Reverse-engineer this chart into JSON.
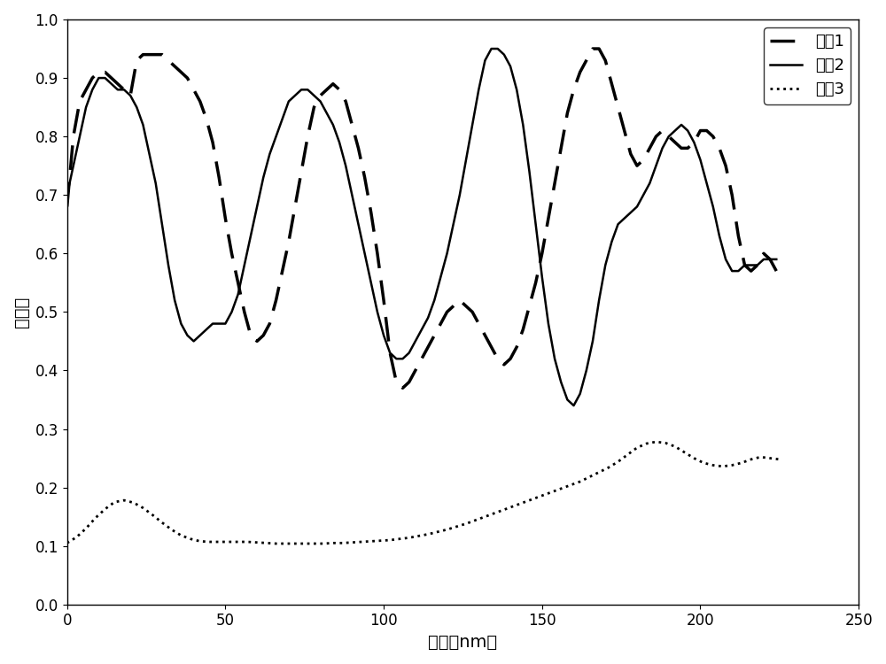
{
  "xlim": [
    0,
    250
  ],
  "ylim": [
    0,
    1.0
  ],
  "xticks": [
    0,
    50,
    100,
    150,
    200,
    250
  ],
  "yticks": [
    0,
    0.1,
    0.2,
    0.3,
    0.4,
    0.5,
    0.6,
    0.7,
    0.8,
    0.9,
    1.0
  ],
  "xlabel": "波长（nm）",
  "ylabel": "反射率",
  "legend": [
    "地牸1",
    "地牸2",
    "地牸3"
  ],
  "line_color": "#000000",
  "background_color": "#ffffff",
  "font_size": 14,
  "curve1_x": [
    0,
    2,
    4,
    6,
    8,
    10,
    12,
    14,
    16,
    18,
    20,
    22,
    24,
    26,
    28,
    30,
    32,
    34,
    36,
    38,
    40,
    42,
    44,
    46,
    48,
    50,
    52,
    54,
    56,
    58,
    60,
    62,
    64,
    66,
    68,
    70,
    72,
    74,
    76,
    78,
    80,
    82,
    84,
    86,
    88,
    90,
    92,
    94,
    96,
    98,
    100,
    102,
    104,
    106,
    108,
    110,
    112,
    114,
    116,
    118,
    120,
    122,
    124,
    126,
    128,
    130,
    132,
    134,
    136,
    138,
    140,
    142,
    144,
    146,
    148,
    150,
    152,
    154,
    156,
    158,
    160,
    162,
    164,
    166,
    168,
    170,
    172,
    174,
    176,
    178,
    180,
    182,
    184,
    186,
    188,
    190,
    192,
    194,
    196,
    198,
    200,
    202,
    204,
    206,
    208,
    210,
    212,
    214,
    216,
    218,
    220,
    222,
    224
  ],
  "curve1_y": [
    0.68,
    0.8,
    0.86,
    0.88,
    0.9,
    0.91,
    0.91,
    0.9,
    0.89,
    0.88,
    0.87,
    0.93,
    0.94,
    0.94,
    0.94,
    0.94,
    0.93,
    0.92,
    0.91,
    0.9,
    0.88,
    0.86,
    0.83,
    0.79,
    0.73,
    0.66,
    0.6,
    0.55,
    0.5,
    0.46,
    0.45,
    0.46,
    0.48,
    0.52,
    0.57,
    0.62,
    0.68,
    0.74,
    0.8,
    0.85,
    0.87,
    0.88,
    0.89,
    0.88,
    0.86,
    0.82,
    0.78,
    0.73,
    0.67,
    0.6,
    0.52,
    0.43,
    0.38,
    0.37,
    0.38,
    0.4,
    0.42,
    0.44,
    0.46,
    0.48,
    0.5,
    0.51,
    0.52,
    0.51,
    0.5,
    0.48,
    0.46,
    0.44,
    0.42,
    0.41,
    0.42,
    0.44,
    0.47,
    0.51,
    0.55,
    0.6,
    0.66,
    0.72,
    0.78,
    0.84,
    0.88,
    0.91,
    0.93,
    0.95,
    0.95,
    0.93,
    0.89,
    0.85,
    0.81,
    0.77,
    0.75,
    0.76,
    0.78,
    0.8,
    0.81,
    0.8,
    0.79,
    0.78,
    0.78,
    0.79,
    0.81,
    0.81,
    0.8,
    0.78,
    0.75,
    0.7,
    0.63,
    0.58,
    0.57,
    0.58,
    0.6,
    0.59,
    0.57
  ],
  "curve2_x": [
    0,
    2,
    4,
    6,
    8,
    10,
    12,
    14,
    16,
    18,
    20,
    22,
    24,
    26,
    28,
    30,
    32,
    34,
    36,
    38,
    40,
    42,
    44,
    46,
    48,
    50,
    52,
    54,
    56,
    58,
    60,
    62,
    64,
    66,
    68,
    70,
    72,
    74,
    76,
    78,
    80,
    82,
    84,
    86,
    88,
    90,
    92,
    94,
    96,
    98,
    100,
    102,
    104,
    106,
    108,
    110,
    112,
    114,
    116,
    118,
    120,
    122,
    124,
    126,
    128,
    130,
    132,
    134,
    136,
    138,
    140,
    142,
    144,
    146,
    148,
    150,
    152,
    154,
    156,
    158,
    160,
    162,
    164,
    166,
    168,
    170,
    172,
    174,
    176,
    178,
    180,
    182,
    184,
    186,
    188,
    190,
    192,
    194,
    196,
    198,
    200,
    202,
    204,
    206,
    208,
    210,
    212,
    214,
    216,
    218,
    220,
    222,
    224
  ],
  "curve2_y": [
    0.7,
    0.75,
    0.8,
    0.85,
    0.88,
    0.9,
    0.9,
    0.89,
    0.88,
    0.88,
    0.87,
    0.85,
    0.82,
    0.77,
    0.72,
    0.65,
    0.58,
    0.52,
    0.48,
    0.46,
    0.45,
    0.46,
    0.47,
    0.48,
    0.48,
    0.48,
    0.5,
    0.53,
    0.58,
    0.63,
    0.68,
    0.73,
    0.77,
    0.8,
    0.83,
    0.86,
    0.87,
    0.88,
    0.88,
    0.87,
    0.86,
    0.84,
    0.82,
    0.79,
    0.75,
    0.7,
    0.65,
    0.6,
    0.55,
    0.5,
    0.46,
    0.43,
    0.42,
    0.42,
    0.43,
    0.45,
    0.47,
    0.49,
    0.52,
    0.56,
    0.6,
    0.65,
    0.7,
    0.76,
    0.82,
    0.88,
    0.93,
    0.95,
    0.95,
    0.94,
    0.92,
    0.88,
    0.82,
    0.74,
    0.65,
    0.56,
    0.48,
    0.42,
    0.38,
    0.35,
    0.34,
    0.36,
    0.4,
    0.45,
    0.52,
    0.58,
    0.62,
    0.65,
    0.66,
    0.67,
    0.68,
    0.7,
    0.72,
    0.75,
    0.78,
    0.8,
    0.81,
    0.82,
    0.81,
    0.79,
    0.76,
    0.72,
    0.68,
    0.63,
    0.59,
    0.57,
    0.57,
    0.58,
    0.58,
    0.58,
    0.59,
    0.59,
    0.59
  ],
  "curve3_x": [
    0,
    3,
    6,
    9,
    12,
    15,
    18,
    21,
    24,
    27,
    30,
    33,
    36,
    39,
    42,
    45,
    48,
    51,
    54,
    57,
    60,
    63,
    66,
    69,
    72,
    75,
    78,
    81,
    84,
    87,
    90,
    93,
    96,
    99,
    102,
    105,
    108,
    111,
    114,
    117,
    120,
    123,
    126,
    129,
    132,
    135,
    138,
    141,
    144,
    147,
    150,
    153,
    156,
    159,
    162,
    165,
    168,
    171,
    174,
    177,
    180,
    183,
    186,
    189,
    192,
    195,
    198,
    201,
    204,
    207,
    210,
    213,
    216,
    219,
    222,
    225
  ],
  "curve3_y": [
    0.105,
    0.115,
    0.13,
    0.148,
    0.163,
    0.175,
    0.178,
    0.174,
    0.165,
    0.153,
    0.14,
    0.128,
    0.118,
    0.112,
    0.108,
    0.107,
    0.107,
    0.107,
    0.107,
    0.107,
    0.106,
    0.105,
    0.104,
    0.104,
    0.104,
    0.104,
    0.104,
    0.104,
    0.105,
    0.105,
    0.106,
    0.107,
    0.108,
    0.109,
    0.11,
    0.112,
    0.114,
    0.117,
    0.12,
    0.124,
    0.128,
    0.133,
    0.138,
    0.144,
    0.15,
    0.156,
    0.162,
    0.168,
    0.174,
    0.18,
    0.186,
    0.192,
    0.198,
    0.204,
    0.21,
    0.218,
    0.226,
    0.234,
    0.244,
    0.256,
    0.268,
    0.275,
    0.278,
    0.276,
    0.27,
    0.26,
    0.25,
    0.242,
    0.238,
    0.236,
    0.238,
    0.242,
    0.248,
    0.252,
    0.25,
    0.248
  ]
}
